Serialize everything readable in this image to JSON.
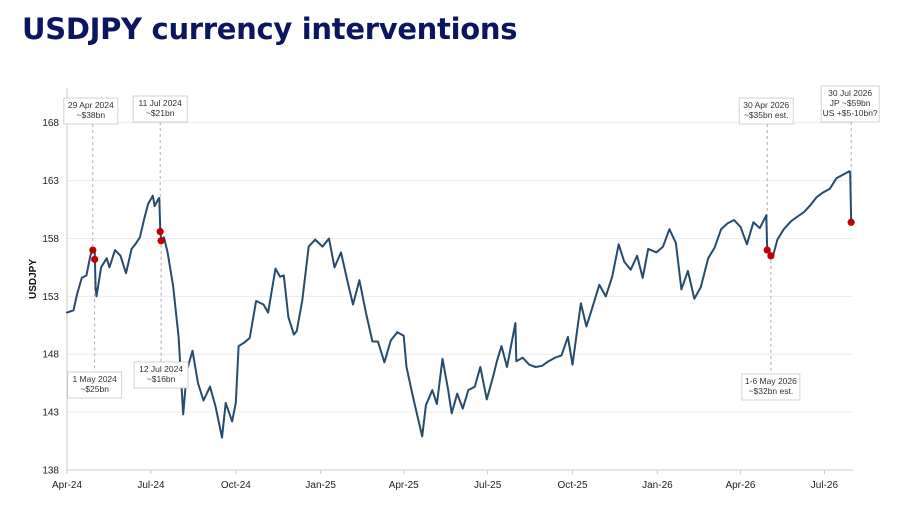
{
  "page": {
    "title": "USDJPY currency interventions"
  },
  "colors": {
    "title": "#0b1560",
    "series": "#274b6d",
    "marker": "#c00000"
  },
  "chart_data": {
    "type": "line",
    "title": "USDJPY currency interventions",
    "xlabel": "",
    "ylabel": "USDJPY",
    "x_range": [
      "2024-04-01",
      "2026-08-01"
    ],
    "ylim": [
      138,
      171
    ],
    "y_ticks": [
      138,
      143,
      148,
      153,
      158,
      163,
      168
    ],
    "x_ticks": [
      {
        "date": "2024-04-01",
        "label": "Apr-24"
      },
      {
        "date": "2024-07-01",
        "label": "Jul-24"
      },
      {
        "date": "2024-10-01",
        "label": "Oct-24"
      },
      {
        "date": "2025-01-01",
        "label": "Jan-25"
      },
      {
        "date": "2025-04-01",
        "label": "Apr-25"
      },
      {
        "date": "2025-07-01",
        "label": "Jul-25"
      },
      {
        "date": "2025-10-01",
        "label": "Oct-25"
      },
      {
        "date": "2026-01-01",
        "label": "Jan-26"
      },
      {
        "date": "2026-04-01",
        "label": "Apr-26"
      },
      {
        "date": "2026-07-01",
        "label": "Jul-26"
      }
    ],
    "grid": true,
    "legend": "none",
    "series": [
      {
        "points": [
          [
            "2024-04-01",
            151.6
          ],
          [
            "2024-04-08",
            151.8
          ],
          [
            "2024-04-12",
            153.2
          ],
          [
            "2024-04-17",
            154.6
          ],
          [
            "2024-04-22",
            154.8
          ],
          [
            "2024-04-26",
            156.4
          ],
          [
            "2024-04-29",
            157.2
          ],
          [
            "2024-04-30",
            156.8
          ],
          [
            "2024-05-01",
            156.9
          ],
          [
            "2024-05-02",
            153.8
          ],
          [
            "2024-05-03",
            153.0
          ],
          [
            "2024-05-08",
            155.5
          ],
          [
            "2024-05-14",
            156.3
          ],
          [
            "2024-05-17",
            155.5
          ],
          [
            "2024-05-23",
            157.0
          ],
          [
            "2024-05-29",
            156.5
          ],
          [
            "2024-06-04",
            155.0
          ],
          [
            "2024-06-10",
            157.1
          ],
          [
            "2024-06-14",
            157.5
          ],
          [
            "2024-06-19",
            158.1
          ],
          [
            "2024-06-24",
            159.8
          ],
          [
            "2024-06-28",
            161.0
          ],
          [
            "2024-07-03",
            161.7
          ],
          [
            "2024-07-05",
            160.8
          ],
          [
            "2024-07-09",
            161.4
          ],
          [
            "2024-07-10",
            161.5
          ],
          [
            "2024-07-11",
            158.9
          ],
          [
            "2024-07-12",
            157.9
          ],
          [
            "2024-07-15",
            158.1
          ],
          [
            "2024-07-19",
            156.8
          ],
          [
            "2024-07-25",
            153.9
          ],
          [
            "2024-07-31",
            149.5
          ],
          [
            "2024-08-05",
            142.8
          ],
          [
            "2024-08-09",
            146.6
          ],
          [
            "2024-08-15",
            148.3
          ],
          [
            "2024-08-21",
            145.5
          ],
          [
            "2024-08-27",
            144.0
          ],
          [
            "2024-09-03",
            145.2
          ],
          [
            "2024-09-09",
            143.5
          ],
          [
            "2024-09-16",
            140.8
          ],
          [
            "2024-09-20",
            143.8
          ],
          [
            "2024-09-27",
            142.2
          ],
          [
            "2024-10-01",
            143.8
          ],
          [
            "2024-10-04",
            148.7
          ],
          [
            "2024-10-10",
            149.0
          ],
          [
            "2024-10-16",
            149.4
          ],
          [
            "2024-10-23",
            152.6
          ],
          [
            "2024-10-31",
            152.3
          ],
          [
            "2024-11-05",
            151.6
          ],
          [
            "2024-11-13",
            155.4
          ],
          [
            "2024-11-18",
            154.7
          ],
          [
            "2024-11-22",
            154.8
          ],
          [
            "2024-11-27",
            151.2
          ],
          [
            "2024-12-03",
            149.7
          ],
          [
            "2024-12-06",
            150.0
          ],
          [
            "2024-12-12",
            152.6
          ],
          [
            "2024-12-19",
            157.3
          ],
          [
            "2024-12-26",
            157.9
          ],
          [
            "2025-01-03",
            157.3
          ],
          [
            "2025-01-10",
            158.0
          ],
          [
            "2025-01-16",
            155.5
          ],
          [
            "2025-01-23",
            156.8
          ],
          [
            "2025-01-30",
            154.3
          ],
          [
            "2025-02-05",
            152.3
          ],
          [
            "2025-02-12",
            154.4
          ],
          [
            "2025-02-19",
            151.6
          ],
          [
            "2025-02-26",
            149.1
          ],
          [
            "2025-03-04",
            149.1
          ],
          [
            "2025-03-11",
            147.3
          ],
          [
            "2025-03-18",
            149.2
          ],
          [
            "2025-03-25",
            149.9
          ],
          [
            "2025-04-01",
            149.6
          ],
          [
            "2025-04-04",
            146.9
          ],
          [
            "2025-04-10",
            144.7
          ],
          [
            "2025-04-16",
            142.6
          ],
          [
            "2025-04-21",
            140.9
          ],
          [
            "2025-04-25",
            143.6
          ],
          [
            "2025-05-02",
            144.9
          ],
          [
            "2025-05-07",
            143.7
          ],
          [
            "2025-05-13",
            147.6
          ],
          [
            "2025-05-19",
            145.0
          ],
          [
            "2025-05-23",
            142.9
          ],
          [
            "2025-05-29",
            144.6
          ],
          [
            "2025-06-04",
            143.3
          ],
          [
            "2025-06-10",
            144.9
          ],
          [
            "2025-06-17",
            145.2
          ],
          [
            "2025-06-23",
            146.9
          ],
          [
            "2025-06-30",
            144.1
          ],
          [
            "2025-07-07",
            146.1
          ],
          [
            "2025-07-11",
            147.4
          ],
          [
            "2025-07-16",
            148.7
          ],
          [
            "2025-07-22",
            146.9
          ],
          [
            "2025-07-31",
            150.7
          ],
          [
            "2025-08-01",
            147.4
          ],
          [
            "2025-08-08",
            147.7
          ],
          [
            "2025-08-15",
            147.1
          ],
          [
            "2025-08-22",
            146.9
          ],
          [
            "2025-08-29",
            147.0
          ],
          [
            "2025-09-05",
            147.4
          ],
          [
            "2025-09-12",
            147.7
          ],
          [
            "2025-09-19",
            147.9
          ],
          [
            "2025-09-26",
            149.5
          ],
          [
            "2025-10-01",
            147.1
          ],
          [
            "2025-10-06",
            150.1
          ],
          [
            "2025-10-10",
            152.4
          ],
          [
            "2025-10-16",
            150.4
          ],
          [
            "2025-10-22",
            151.9
          ],
          [
            "2025-10-30",
            154.0
          ],
          [
            "2025-11-06",
            153.0
          ],
          [
            "2025-11-13",
            154.7
          ],
          [
            "2025-11-20",
            157.5
          ],
          [
            "2025-11-26",
            156.0
          ],
          [
            "2025-12-03",
            155.3
          ],
          [
            "2025-12-10",
            156.5
          ],
          [
            "2025-12-16",
            154.6
          ],
          [
            "2025-12-22",
            157.1
          ],
          [
            "2025-12-31",
            156.8
          ],
          [
            "2026-01-07",
            157.3
          ],
          [
            "2026-01-14",
            158.8
          ],
          [
            "2026-01-21",
            157.6
          ],
          [
            "2026-01-27",
            153.6
          ],
          [
            "2026-02-03",
            155.2
          ],
          [
            "2026-02-10",
            152.8
          ],
          [
            "2026-02-17",
            153.8
          ],
          [
            "2026-02-25",
            156.3
          ],
          [
            "2026-03-04",
            157.2
          ],
          [
            "2026-03-11",
            158.8
          ],
          [
            "2026-03-18",
            159.3
          ],
          [
            "2026-03-25",
            159.6
          ],
          [
            "2026-04-01",
            159.0
          ],
          [
            "2026-04-08",
            157.5
          ],
          [
            "2026-04-15",
            159.4
          ],
          [
            "2026-04-22",
            158.9
          ],
          [
            "2026-04-29",
            160.0
          ],
          [
            "2026-04-30",
            157.0
          ],
          [
            "2026-05-01",
            157.1
          ],
          [
            "2026-05-04",
            156.6
          ],
          [
            "2026-05-06",
            156.4
          ],
          [
            "2026-05-11",
            157.9
          ],
          [
            "2026-05-18",
            158.8
          ],
          [
            "2026-05-26",
            159.5
          ],
          [
            "2026-06-02",
            159.9
          ],
          [
            "2026-06-09",
            160.3
          ],
          [
            "2026-06-16",
            160.9
          ],
          [
            "2026-06-23",
            161.6
          ],
          [
            "2026-06-30",
            162.0
          ],
          [
            "2026-07-07",
            162.3
          ],
          [
            "2026-07-14",
            163.2
          ],
          [
            "2026-07-21",
            163.5
          ],
          [
            "2026-07-28",
            163.8
          ],
          [
            "2026-07-29",
            163.7
          ],
          [
            "2026-07-30",
            159.4
          ]
        ]
      }
    ],
    "interventions": [
      {
        "date": "2024-04-29",
        "value": 157.0,
        "lines": [
          "29 Apr 2024",
          "~$38bn"
        ],
        "position": "above"
      },
      {
        "date": "2024-05-01",
        "value": 156.2,
        "lines": [
          "1 May 2024",
          "~$25bn"
        ],
        "position": "below"
      },
      {
        "date": "2024-07-11",
        "value": 158.6,
        "lines": [
          "11 Jul 2024",
          "~$21bn"
        ],
        "position": "above"
      },
      {
        "date": "2024-07-12",
        "value": 157.8,
        "lines": [
          "12 Jul 2024",
          "~$16bn"
        ],
        "position": "below"
      },
      {
        "date": "2026-04-30",
        "value": 157.0,
        "lines": [
          "30 Apr 2026",
          "~$35bn est."
        ],
        "position": "above"
      },
      {
        "date": "2026-05-04",
        "value": 156.5,
        "lines": [
          "1-6 May 2026",
          "~$32bn est."
        ],
        "position": "below"
      },
      {
        "date": "2026-07-30",
        "value": 159.4,
        "lines": [
          "30 Jul 2026",
          "JP ~$59bn",
          "US +$5-10bn?"
        ],
        "position": "above"
      }
    ]
  }
}
